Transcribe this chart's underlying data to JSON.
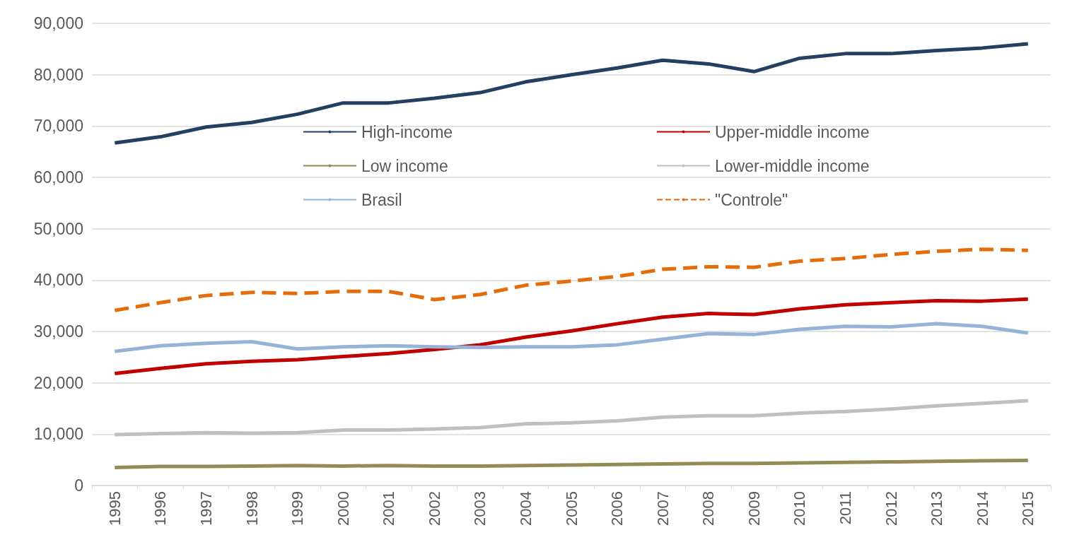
{
  "chart_data": {
    "type": "line",
    "categories": [
      "1995",
      "1996",
      "1997",
      "1998",
      "1999",
      "2000",
      "2001",
      "2002",
      "2003",
      "2004",
      "2005",
      "2006",
      "2007",
      "2008",
      "2009",
      "2010",
      "2011",
      "2012",
      "2013",
      "2014",
      "2015"
    ],
    "series": [
      {
        "name": "High-income",
        "color": "#243f60",
        "values": [
          66700,
          67900,
          69800,
          70700,
          72300,
          74500,
          74500,
          75400,
          76500,
          78600,
          80000,
          81300,
          82800,
          82100,
          80600,
          83200,
          84100,
          84100,
          84700,
          85200,
          86000
        ]
      },
      {
        "name": "Upper-middle income",
        "color": "#c00000",
        "values": [
          21800,
          22800,
          23700,
          24200,
          24500,
          25100,
          25700,
          26500,
          27400,
          28900,
          30100,
          31500,
          32800,
          33500,
          33300,
          34400,
          35200,
          35600,
          36000,
          35900,
          36300
        ]
      },
      {
        "name": "Low income",
        "color": "#948a54",
        "values": [
          3500,
          3700,
          3700,
          3800,
          3900,
          3800,
          3900,
          3800,
          3800,
          3900,
          4000,
          4100,
          4200,
          4300,
          4300,
          4400,
          4500,
          4600,
          4700,
          4800,
          4900
        ]
      },
      {
        "name": "Lower-middle income",
        "color": "#bfbfbf",
        "values": [
          9900,
          10100,
          10300,
          10200,
          10300,
          10800,
          10800,
          11000,
          11300,
          12000,
          12200,
          12600,
          13300,
          13600,
          13600,
          14100,
          14400,
          14900,
          15500,
          16000,
          16500
        ]
      },
      {
        "name": "Brasil",
        "color": "#95b3d7",
        "values": [
          26100,
          27200,
          27700,
          28000,
          26600,
          27000,
          27200,
          27000,
          26900,
          27000,
          27000,
          27400,
          28500,
          29600,
          29400,
          30400,
          31000,
          30900,
          31500,
          31000,
          29700
        ]
      },
      {
        "name": "\"Controle\"",
        "color": "#e46c0a",
        "line_style": "dashed",
        "values": [
          34100,
          35600,
          37000,
          37600,
          37400,
          37800,
          37800,
          36200,
          37200,
          39000,
          39800,
          40700,
          42100,
          42600,
          42500,
          43700,
          44200,
          45000,
          45600,
          46000,
          45800
        ]
      }
    ],
    "ylim": [
      0,
      90000
    ],
    "yticks": [
      0,
      {
        "value": 10000,
        "label": "10,000"
      },
      {
        "value": 20000,
        "label": "20,000"
      },
      {
        "value": 30000,
        "label": "30,000"
      },
      {
        "value": 40000,
        "label": "40,000"
      },
      {
        "value": 50000,
        "label": "50,000"
      },
      {
        "value": 60000,
        "label": "60,000"
      },
      {
        "value": 70000,
        "label": "70,000"
      },
      {
        "value": 80000,
        "label": "80,000"
      },
      {
        "value": 90000,
        "label": "90,000"
      }
    ],
    "grid": "y",
    "legend": "top",
    "marker": "none",
    "line_style": "solid"
  }
}
